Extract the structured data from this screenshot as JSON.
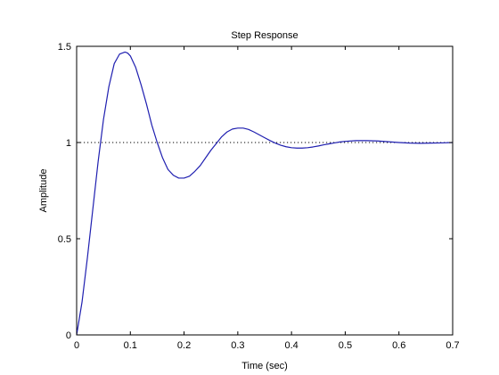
{
  "chart_data": {
    "type": "line",
    "title": "Step Response",
    "xlabel": "Time (sec)",
    "ylabel": "Amplitude",
    "xlim": [
      0,
      0.7
    ],
    "ylim": [
      0,
      1.5
    ],
    "xticks": [
      0,
      0.1,
      0.2,
      0.3,
      0.4,
      0.5,
      0.6,
      0.7
    ],
    "xtick_labels": [
      "0",
      "0.1",
      "0.2",
      "0.3",
      "0.4",
      "0.5",
      "0.6",
      "0.7"
    ],
    "yticks": [
      0,
      0.5,
      1,
      1.5
    ],
    "ytick_labels": [
      "0",
      "0.5",
      "1",
      "1.5"
    ],
    "grid": false,
    "series": [
      {
        "color": "#1f1fb0",
        "x": [
          0,
          0.01,
          0.02,
          0.03,
          0.04,
          0.05,
          0.06,
          0.07,
          0.08,
          0.09,
          0.095,
          0.1,
          0.11,
          0.12,
          0.13,
          0.14,
          0.15,
          0.16,
          0.17,
          0.18,
          0.19,
          0.2,
          0.21,
          0.22,
          0.23,
          0.24,
          0.25,
          0.26,
          0.27,
          0.28,
          0.29,
          0.3,
          0.31,
          0.32,
          0.33,
          0.34,
          0.35,
          0.36,
          0.37,
          0.38,
          0.39,
          0.4,
          0.41,
          0.42,
          0.43,
          0.44,
          0.45,
          0.46,
          0.47,
          0.48,
          0.49,
          0.5,
          0.52,
          0.54,
          0.56,
          0.58,
          0.6,
          0.62,
          0.64,
          0.66,
          0.68,
          0.7
        ],
        "y": [
          0,
          0.17,
          0.4,
          0.65,
          0.9,
          1.12,
          1.29,
          1.41,
          1.46,
          1.47,
          1.465,
          1.45,
          1.39,
          1.3,
          1.2,
          1.09,
          1.0,
          0.92,
          0.86,
          0.83,
          0.815,
          0.815,
          0.825,
          0.85,
          0.88,
          0.92,
          0.96,
          0.995,
          1.03,
          1.055,
          1.07,
          1.075,
          1.075,
          1.068,
          1.055,
          1.04,
          1.025,
          1.01,
          0.997,
          0.986,
          0.978,
          0.973,
          0.971,
          0.971,
          0.973,
          0.977,
          0.982,
          0.988,
          0.993,
          0.998,
          1.003,
          1.006,
          1.01,
          1.01,
          1.008,
          1.004,
          1.0,
          0.997,
          0.996,
          0.997,
          0.998,
          1.0
        ]
      },
      {
        "style": "dotted",
        "color": "#000000",
        "x": [
          0,
          0.7
        ],
        "y": [
          1,
          1
        ]
      }
    ]
  }
}
